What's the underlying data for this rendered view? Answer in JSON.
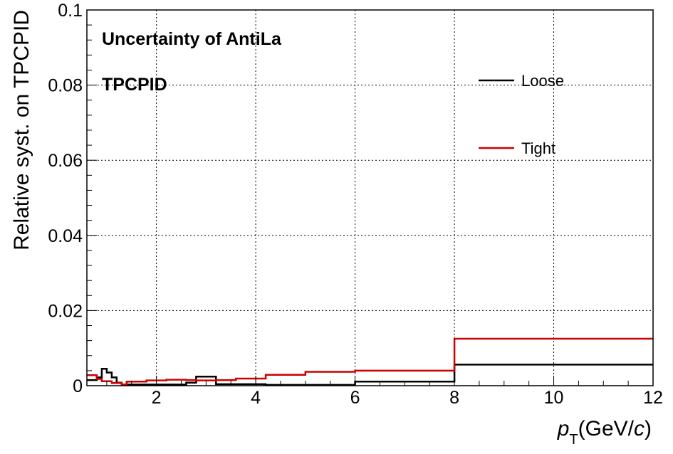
{
  "chart_data": {
    "type": "line",
    "step": true,
    "xlabel": "p_T (GeV/c)",
    "xlabel_parts": {
      "main": "p",
      "sub": "T",
      "unit_open": "(GeV/",
      "unit_var": "c",
      "unit_close": ")"
    },
    "ylabel": "Relative syst. on TPCPID",
    "xlim": [
      0.6,
      12
    ],
    "ylim": [
      0,
      0.1
    ],
    "x_ticks": [
      "2",
      "4",
      "6",
      "8",
      "10",
      "12"
    ],
    "y_ticks": [
      "0",
      "0.02",
      "0.04",
      "0.06",
      "0.08",
      "0.1"
    ],
    "grid": true,
    "annotations": [
      "Uncertainty of AntiLa",
      "TPCPID"
    ],
    "legend_position": "top-right",
    "series": [
      {
        "name": "Loose",
        "color": "#000000",
        "edges": [
          0.6,
          0.8,
          0.9,
          1.0,
          1.1,
          1.2,
          1.3,
          1.4,
          1.6,
          1.8,
          2.0,
          2.2,
          2.4,
          2.6,
          2.8,
          3.2,
          3.6,
          4.2,
          5.0,
          6.0,
          8.0,
          12.0
        ],
        "values": [
          0.0015,
          0.0022,
          0.0045,
          0.0035,
          0.0022,
          0.0008,
          0.0003,
          0.0003,
          0.0003,
          0.0003,
          0.0003,
          0.0003,
          0.0003,
          0.0008,
          0.0024,
          0.0004,
          0.0004,
          0.0002,
          0.0002,
          0.0011,
          0.0056
        ]
      },
      {
        "name": "Tight",
        "color": "#cc0000",
        "edges": [
          0.6,
          0.8,
          0.9,
          1.0,
          1.1,
          1.2,
          1.3,
          1.4,
          1.6,
          1.8,
          2.0,
          2.2,
          2.4,
          2.6,
          2.8,
          3.2,
          3.6,
          4.2,
          5.0,
          6.0,
          8.0,
          12.0
        ],
        "values": [
          0.0028,
          0.0018,
          0.0012,
          0.0012,
          0.0007,
          0.0007,
          0.0003,
          0.0011,
          0.0011,
          0.0014,
          0.0014,
          0.0016,
          0.0016,
          0.0015,
          0.0014,
          0.0015,
          0.0019,
          0.0029,
          0.0037,
          0.004,
          0.0125
        ]
      }
    ]
  }
}
